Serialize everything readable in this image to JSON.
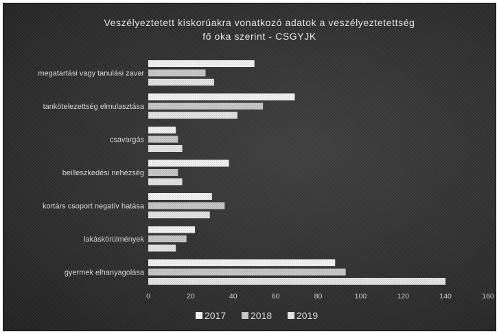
{
  "chart_data": {
    "type": "bar",
    "orientation": "horizontal",
    "title_lines": [
      "Veszélyeztetett kiskorúakra vonatkozó adatok a veszélyeztetettség",
      "fő oka szerint - CSGYJK"
    ],
    "categories": [
      "megatartási vagy tanulási zavar",
      "tankötelezettség elmulasztása",
      "csavargás",
      "beilleszkedési nehézség",
      "kortárs csoport negatív hatása",
      "lakáskörülmények",
      "gyermek elhanyagolása"
    ],
    "series": [
      {
        "name": "2017",
        "values": [
          50,
          69,
          13,
          38,
          30,
          22,
          88
        ],
        "color": "#f0f0f0"
      },
      {
        "name": "2018",
        "values": [
          27,
          54,
          14,
          14,
          36,
          18,
          93
        ],
        "color": "#c6c6c6"
      },
      {
        "name": "2019",
        "values": [
          31,
          42,
          16,
          16,
          29,
          13,
          140
        ],
        "color": "#e2e2e2"
      }
    ],
    "xlim": [
      0,
      160
    ],
    "xticks": [
      0,
      20,
      40,
      60,
      80,
      100,
      120,
      140,
      160
    ],
    "grid": false,
    "legend_position": "bottom"
  }
}
